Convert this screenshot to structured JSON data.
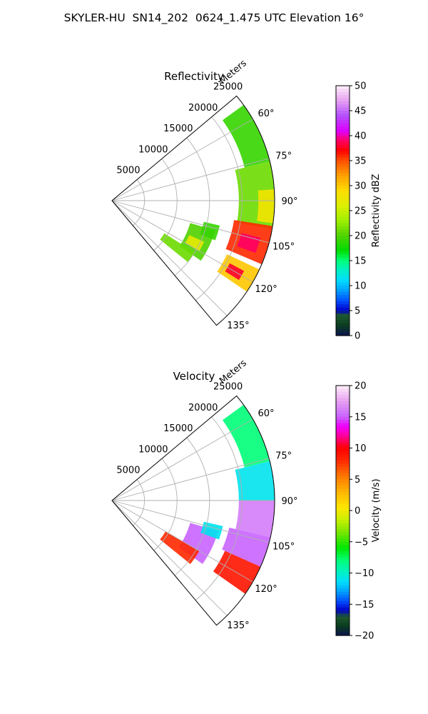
{
  "title": "SKYLER-HU  SN14_202  0624_1.475 UTC Elevation 16°",
  "colors": {
    "grid": "#b0b0b0",
    "frame": "#000000"
  },
  "chart_data": [
    {
      "type": "heatmap",
      "projection": "polar-sector",
      "title": "Reflectivity",
      "radial_label": "Meters",
      "theta_range_deg": [
        50,
        140
      ],
      "r_max": 25000,
      "radial_ticks": [
        5000,
        10000,
        15000,
        20000,
        25000
      ],
      "radial_tick_labels": [
        "5000",
        "10000",
        "15000",
        "20000",
        "25000"
      ],
      "angle_ticks": [
        60,
        75,
        90,
        105,
        120,
        135
      ],
      "angle_tick_labels": [
        "60°",
        "75°",
        "90°",
        "105°",
        "120°",
        "135°"
      ],
      "grid": true,
      "colorbar": {
        "label": "Reflectivity dBZ",
        "range": [
          0,
          50
        ],
        "ticks": [
          0,
          5,
          10,
          15,
          20,
          25,
          30,
          35,
          40,
          45,
          50
        ],
        "tick_labels": [
          "0",
          "5",
          "10",
          "15",
          "20",
          "25",
          "30",
          "35",
          "40",
          "45",
          "50"
        ],
        "stops": [
          {
            "value": 0,
            "color": "#0b1450"
          },
          {
            "value": 2,
            "color": "#0a3c1e"
          },
          {
            "value": 4,
            "color": "#1e5a2e"
          },
          {
            "value": 5,
            "color": "#0000c8"
          },
          {
            "value": 7,
            "color": "#0050ff"
          },
          {
            "value": 9,
            "color": "#00a0ff"
          },
          {
            "value": 11,
            "color": "#00dcff"
          },
          {
            "value": 13,
            "color": "#00f0c8"
          },
          {
            "value": 15,
            "color": "#00ff78"
          },
          {
            "value": 17,
            "color": "#00dc00"
          },
          {
            "value": 20,
            "color": "#50d200"
          },
          {
            "value": 23,
            "color": "#a0f000"
          },
          {
            "value": 26,
            "color": "#dcf000"
          },
          {
            "value": 29,
            "color": "#ffdc00"
          },
          {
            "value": 32,
            "color": "#ffa000"
          },
          {
            "value": 35,
            "color": "#ff5000"
          },
          {
            "value": 37,
            "color": "#ff0000"
          },
          {
            "value": 39,
            "color": "#ff0064"
          },
          {
            "value": 41,
            "color": "#dc00ff"
          },
          {
            "value": 44,
            "color": "#b450ff"
          },
          {
            "value": 47,
            "color": "#e6a0f0"
          },
          {
            "value": 50,
            "color": "#fff0fa"
          }
        ]
      },
      "regions": [
        {
          "theta": [
            54,
            76
          ],
          "r": [
            21000,
            25000
          ],
          "value": 19
        },
        {
          "theta": [
            76,
            100
          ],
          "r": [
            19500,
            25000
          ],
          "value": 21
        },
        {
          "theta": [
            86,
            98
          ],
          "r": [
            22500,
            25000
          ],
          "value": 28
        },
        {
          "theta": [
            99,
            113
          ],
          "r": [
            19000,
            25000
          ],
          "value": 36
        },
        {
          "theta": [
            104,
            110
          ],
          "r": [
            20500,
            23500
          ],
          "value": 39
        },
        {
          "theta": [
            115,
            124
          ],
          "r": [
            19500,
            25000
          ],
          "value": 30
        },
        {
          "theta": [
            118,
            122
          ],
          "r": [
            20500,
            23000
          ],
          "value": 38
        },
        {
          "theta": [
            106,
            124
          ],
          "r": [
            12500,
            16500
          ],
          "value": 20
        },
        {
          "theta": [
            114,
            120
          ],
          "r": [
            13000,
            15500
          ],
          "value": 27
        },
        {
          "theta": [
            122,
            129
          ],
          "r": [
            9500,
            15000
          ],
          "value": 21
        },
        {
          "theta": [
            103,
            111
          ],
          "r": [
            14500,
            17000
          ],
          "value": 19
        }
      ]
    },
    {
      "type": "heatmap",
      "projection": "polar-sector",
      "title": "Velocity",
      "radial_label": "Meters",
      "theta_range_deg": [
        50,
        140
      ],
      "r_max": 25000,
      "radial_ticks": [
        5000,
        10000,
        15000,
        20000,
        25000
      ],
      "radial_tick_labels": [
        "5000",
        "10000",
        "15000",
        "20000",
        "25000"
      ],
      "angle_ticks": [
        60,
        75,
        90,
        105,
        120,
        135
      ],
      "angle_tick_labels": [
        "60°",
        "75°",
        "90°",
        "105°",
        "120°",
        "135°"
      ],
      "grid": true,
      "colorbar": {
        "label": "Velocity (m/s)",
        "range": [
          -20,
          20
        ],
        "ticks": [
          -20,
          -15,
          -10,
          -5,
          0,
          5,
          10,
          15,
          20
        ],
        "tick_labels": [
          "−20",
          "−15",
          "−10",
          "−5",
          "0",
          "5",
          "10",
          "15",
          "20"
        ],
        "stops": [
          {
            "value": -20,
            "color": "#0b1450"
          },
          {
            "value": -18.5,
            "color": "#0a3c1e"
          },
          {
            "value": -17,
            "color": "#1e5a2e"
          },
          {
            "value": -16,
            "color": "#0000c8"
          },
          {
            "value": -14.5,
            "color": "#0050ff"
          },
          {
            "value": -13,
            "color": "#00a0ff"
          },
          {
            "value": -11.5,
            "color": "#00dcff"
          },
          {
            "value": -10,
            "color": "#00f0c8"
          },
          {
            "value": -8,
            "color": "#00ff78"
          },
          {
            "value": -6,
            "color": "#00e600"
          },
          {
            "value": -3.5,
            "color": "#78e600"
          },
          {
            "value": -1.5,
            "color": "#c8f000"
          },
          {
            "value": 0.5,
            "color": "#ffe600"
          },
          {
            "value": 3,
            "color": "#ffb400"
          },
          {
            "value": 5.5,
            "color": "#ff7800"
          },
          {
            "value": 8,
            "color": "#ff2800"
          },
          {
            "value": 10,
            "color": "#ff0000"
          },
          {
            "value": 12,
            "color": "#ff00a0"
          },
          {
            "value": 13.5,
            "color": "#f000ff"
          },
          {
            "value": 15,
            "color": "#c864ff"
          },
          {
            "value": 17.5,
            "color": "#e6a0f0"
          },
          {
            "value": 20,
            "color": "#fff0fa"
          }
        ]
      },
      "regions": [
        {
          "theta": [
            54,
            76
          ],
          "r": [
            21000,
            25000
          ],
          "value": -8
        },
        {
          "theta": [
            76,
            90
          ],
          "r": [
            19500,
            25000
          ],
          "value": -11
        },
        {
          "theta": [
            90,
            103
          ],
          "r": [
            19500,
            25000
          ],
          "value": 16
        },
        {
          "theta": [
            103,
            114
          ],
          "r": [
            18500,
            25000
          ],
          "value": 15
        },
        {
          "theta": [
            114,
            125
          ],
          "r": [
            19000,
            25000
          ],
          "value": 9
        },
        {
          "theta": [
            106,
            125
          ],
          "r": [
            12500,
            17000
          ],
          "value": 15
        },
        {
          "theta": [
            120,
            129
          ],
          "r": [
            9500,
            15500
          ],
          "value": 8
        },
        {
          "theta": [
            103,
            110
          ],
          "r": [
            14500,
            17500
          ],
          "value": -11
        }
      ]
    }
  ]
}
